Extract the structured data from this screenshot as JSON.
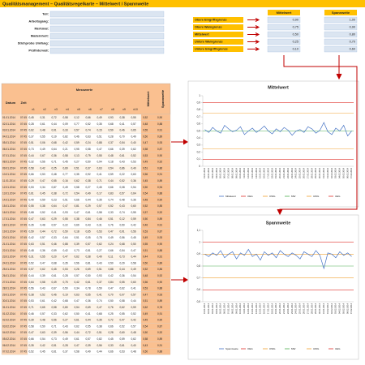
{
  "header": {
    "title": "Qualitätsmanagement – Qualitätsregelkarte – Mittelwert / Spannweite"
  },
  "info": {
    "labels": [
      "Teil:",
      "Arbeitsgang:",
      "Merkmal:",
      "Maßeinheit:",
      "Stichprobe Umfang:",
      "Prüfintervall:"
    ]
  },
  "limits": {
    "columns": [
      "Mittelwert",
      "Spannweite"
    ],
    "rows": [
      {
        "label": "Obere Eingriffsgrenze",
        "values": [
          "0,90",
          "1,00"
        ]
      },
      {
        "label": "Obere Warngrenze",
        "values": [
          "0,75",
          "0,90"
        ]
      },
      {
        "label": "Mittelwert",
        "values": [
          "0,50",
          "0,80"
        ]
      },
      {
        "label": "Untere Warngrenze",
        "values": [
          "0,25",
          "0,70"
        ]
      },
      {
        "label": "Untere Eingriffsgrenze",
        "values": [
          "0,10",
          "0,60"
        ]
      }
    ]
  },
  "table": {
    "headers": [
      "Datum",
      "Zeit",
      "Messwerte",
      "Mittelwert",
      "Spannweite"
    ],
    "subheaders": [
      "x1",
      "x2",
      "x3",
      "x4",
      "x5",
      "x6",
      "x7",
      "x8",
      "x9",
      "x10"
    ],
    "rows": [
      [
        "01.01.2014",
        "07:45",
        "0,45",
        "0,31",
        "0,72",
        "0,58",
        "0,12",
        "0,66",
        "0,49",
        "0,93",
        "0,38",
        "0,55",
        "0,52",
        "0,90"
      ],
      [
        "02.01.2014",
        "07:45",
        "0,28",
        "0,61",
        "0,44",
        "0,09",
        "0,77",
        "0,52",
        "0,35",
        "0,68",
        "0,41",
        "0,57",
        "0,48",
        "0,88"
      ],
      [
        "03.01.2014",
        "07:45",
        "0,62",
        "0,48",
        "0,91",
        "0,33",
        "0,57",
        "0,74",
        "0,15",
        "0,59",
        "0,46",
        "0,65",
        "0,55",
        "0,91"
      ],
      [
        "04.01.2014",
        "07:45",
        "0,37",
        "0,55",
        "0,19",
        "0,82",
        "0,46",
        "0,63",
        "0,51",
        "0,28",
        "0,70",
        "0,49",
        "0,50",
        "0,89"
      ],
      [
        "05.01.2014",
        "07:45",
        "0,51",
        "0,06",
        "0,68",
        "0,42",
        "0,59",
        "0,24",
        "0,88",
        "0,37",
        "0,54",
        "0,40",
        "0,47",
        "0,93"
      ],
      [
        "06.01.2014",
        "07:45",
        "0,73",
        "0,49",
        "0,64",
        "0,21",
        "0,95",
        "0,58",
        "0,47",
        "0,66",
        "0,39",
        "0,62",
        "0,58",
        "0,87"
      ],
      [
        "07.01.2014",
        "07:45",
        "0,44",
        "0,67",
        "0,36",
        "0,58",
        "0,13",
        "0,79",
        "0,55",
        "0,48",
        "0,61",
        "0,52",
        "0,53",
        "0,90"
      ],
      [
        "08.01.2014",
        "07:45",
        "0,32",
        "0,56",
        "0,71",
        "0,45",
        "0,27",
        "0,50",
        "0,94",
        "0,18",
        "0,43",
        "0,53",
        "0,49",
        "0,92"
      ],
      [
        "09.01.2014",
        "07:45",
        "0,58",
        "0,42",
        "0,25",
        "0,69",
        "0,51",
        "0,37",
        "0,63",
        "0,54",
        "0,86",
        "0,40",
        "0,51",
        "0,86"
      ],
      [
        "10.01.2014",
        "07:45",
        "0,66",
        "0,53",
        "0,48",
        "0,77",
        "0,35",
        "0,92",
        "0,41",
        "0,59",
        "0,22",
        "0,63",
        "0,56",
        "0,91"
      ],
      [
        "11.01.2014",
        "07:45",
        "0,29",
        "0,47",
        "0,55",
        "0,16",
        "0,62",
        "0,38",
        "0,71",
        "0,44",
        "0,52",
        "0,36",
        "0,45",
        "0,89"
      ],
      [
        "12.01.2014",
        "07:45",
        "0,53",
        "0,34",
        "0,87",
        "0,49",
        "0,58",
        "0,27",
        "0,45",
        "0,66",
        "0,08",
        "0,54",
        "0,50",
        "0,94"
      ],
      [
        "13.01.2014",
        "07:45",
        "0,61",
        "0,45",
        "0,38",
        "0,72",
        "0,54",
        "0,49",
        "0,17",
        "0,83",
        "0,57",
        "0,64",
        "0,54",
        "0,88"
      ],
      [
        "14.01.2014",
        "07:45",
        "0,40",
        "0,59",
        "0,23",
        "0,51",
        "0,66",
        "0,44",
        "0,35",
        "0,74",
        "0,48",
        "0,36",
        "0,48",
        "0,90"
      ],
      [
        "15.01.2014",
        "07:45",
        "0,55",
        "0,38",
        "0,64",
        "0,47",
        "0,81",
        "0,29",
        "0,57",
        "0,52",
        "0,43",
        "0,60",
        "0,52",
        "0,85"
      ],
      [
        "16.01.2014",
        "07:45",
        "0,68",
        "0,52",
        "0,41",
        "0,93",
        "0,47",
        "0,61",
        "0,58",
        "0,33",
        "0,74",
        "0,55",
        "0,57",
        "0,92"
      ],
      [
        "17.01.2014",
        "07:45",
        "0,47",
        "0,63",
        "0,29",
        "0,55",
        "0,38",
        "0,84",
        "0,46",
        "0,51",
        "0,12",
        "0,59",
        "0,50",
        "0,89"
      ],
      [
        "18.01.2014",
        "07:45",
        "0,35",
        "0,48",
        "0,57",
        "0,22",
        "0,69",
        "0,43",
        "0,31",
        "0,76",
        "0,50",
        "0,42",
        "0,46",
        "0,91"
      ],
      [
        "19.01.2014",
        "07:45",
        "0,59",
        "0,44",
        "0,72",
        "0,50",
        "0,18",
        "0,65",
        "0,53",
        "0,47",
        "0,91",
        "0,56",
        "0,53",
        "0,87"
      ],
      [
        "20.01.2014",
        "07:45",
        "0,42",
        "0,57",
        "0,33",
        "0,64",
        "0,51",
        "0,05",
        "0,78",
        "0,49",
        "0,56",
        "0,45",
        "0,49",
        "0,93"
      ],
      [
        "21.01.2014",
        "07:45",
        "0,63",
        "0,51",
        "0,46",
        "0,88",
        "0,39",
        "0,57",
        "0,62",
        "0,24",
        "0,68",
        "0,50",
        "0,55",
        "0,90"
      ],
      [
        "22.01.2014",
        "07:45",
        "0,48",
        "0,36",
        "0,59",
        "0,42",
        "0,73",
        "0,51",
        "0,27",
        "0,66",
        "0,54",
        "0,47",
        "0,51",
        "0,88"
      ],
      [
        "23.01.2014",
        "07:45",
        "0,31",
        "0,55",
        "0,20",
        "0,47",
        "0,62",
        "0,38",
        "0,49",
        "0,11",
        "0,73",
        "0,44",
        "0,44",
        "0,91"
      ],
      [
        "24.01.2014",
        "07:45",
        "0,52",
        "0,47",
        "0,68",
        "0,35",
        "0,56",
        "0,81",
        "0,43",
        "0,50",
        "0,29",
        "0,58",
        "0,50",
        "0,89"
      ],
      [
        "25.01.2014",
        "07:45",
        "0,57",
        "0,62",
        "0,45",
        "0,53",
        "0,26",
        "0,69",
        "0,51",
        "0,88",
        "0,44",
        "0,49",
        "0,52",
        "0,86"
      ],
      [
        "26.01.2014",
        "07:45",
        "0,44",
        "0,39",
        "0,61",
        "0,28",
        "0,57",
        "0,50",
        "0,93",
        "0,42",
        "0,36",
        "0,54",
        "0,48",
        "0,92"
      ],
      [
        "27.01.2014",
        "07:45",
        "0,64",
        "0,58",
        "0,49",
        "0,75",
        "0,42",
        "0,61",
        "0,37",
        "0,84",
        "0,55",
        "0,60",
        "0,56",
        "0,90"
      ],
      [
        "28.01.2014",
        "07:45",
        "0,56",
        "0,43",
        "0,67",
        "0,50",
        "0,34",
        "0,78",
        "0,59",
        "0,47",
        "0,62",
        "0,41",
        "0,53",
        "0,88"
      ],
      [
        "29.01.2014",
        "07:45",
        "0,38",
        "0,52",
        "0,46",
        "0,19",
        "0,63",
        "0,55",
        "0,41",
        "0,70",
        "0,07",
        "0,57",
        "0,47",
        "0,93"
      ],
      [
        "30.01.2014",
        "07:45",
        "0,53",
        "0,61",
        "0,42",
        "0,68",
        "0,47",
        "0,36",
        "0,74",
        "0,50",
        "0,58",
        "0,44",
        "0,51",
        "0,89"
      ],
      [
        "31.01.2014",
        "07:45",
        "0,71",
        "0,65",
        "0,58",
        "0,80",
        "0,54",
        "0,69",
        "0,47",
        "0,76",
        "0,62",
        "0,59",
        "0,62",
        "0,78"
      ],
      [
        "01.02.2014",
        "07:45",
        "0,46",
        "0,57",
        "0,33",
        "0,62",
        "0,50",
        "0,41",
        "0,68",
        "0,25",
        "0,55",
        "0,52",
        "0,49",
        "0,91"
      ],
      [
        "02.02.2014",
        "07:45",
        "0,39",
        "0,48",
        "0,56",
        "0,27",
        "0,61",
        "0,44",
        "0,35",
        "0,72",
        "0,47",
        "0,42",
        "0,45",
        "0,90"
      ],
      [
        "03.02.2014",
        "07:45",
        "0,58",
        "0,50",
        "0,71",
        "0,43",
        "0,62",
        "0,55",
        "0,38",
        "0,66",
        "0,52",
        "0,57",
        "0,54",
        "0,87"
      ],
      [
        "04.02.2014",
        "07:45",
        "0,47",
        "0,63",
        "0,39",
        "0,56",
        "0,44",
        "0,72",
        "0,51",
        "0,28",
        "0,60",
        "0,48",
        "0,50",
        "0,92"
      ],
      [
        "05.02.2014",
        "07:45",
        "0,66",
        "0,54",
        "0,73",
        "0,49",
        "0,61",
        "0,57",
        "0,82",
        "0,45",
        "0,59",
        "0,62",
        "0,58",
        "0,89"
      ],
      [
        "06.02.2014",
        "07:45",
        "0,35",
        "0,42",
        "0,51",
        "0,28",
        "0,47",
        "0,39",
        "0,56",
        "0,33",
        "0,61",
        "0,40",
        "0,43",
        "0,91"
      ],
      [
        "07.02.2014",
        "07:45",
        "0,52",
        "0,45",
        "0,61",
        "0,37",
        "0,58",
        "0,49",
        "0,44",
        "0,66",
        "0,53",
        "0,48",
        "0,50",
        "0,88"
      ]
    ]
  },
  "charts": [
    {
      "title": "Mittelwert",
      "series_name": "Mittelwert",
      "color": "#4472c4",
      "values": [
        0.52,
        0.48,
        0.55,
        0.5,
        0.47,
        0.58,
        0.53,
        0.49,
        0.51,
        0.56,
        0.45,
        0.5,
        0.54,
        0.48,
        0.52,
        0.57,
        0.5,
        0.46,
        0.53,
        0.49,
        0.55,
        0.51,
        0.44,
        0.5,
        0.52,
        0.48,
        0.56,
        0.53,
        0.47,
        0.51,
        0.62,
        0.49,
        0.45,
        0.54,
        0.5,
        0.58,
        0.43,
        0.5
      ],
      "ylim": [
        0,
        1
      ],
      "yticks": [
        {
          "value": 0,
          "label": "0"
        },
        {
          "value": 0.1,
          "label": "0,1"
        },
        {
          "value": 0.2,
          "label": "0,2"
        },
        {
          "value": 0.3,
          "label": "0,3"
        },
        {
          "value": 0.4,
          "label": "0,4"
        },
        {
          "value": 0.5,
          "label": "0,5"
        },
        {
          "value": 0.6,
          "label": "0,6"
        },
        {
          "value": 0.7,
          "label": "0,7"
        },
        {
          "value": 0.8,
          "label": "0,8"
        },
        {
          "value": 0.9,
          "label": "0,9"
        },
        {
          "value": 1,
          "label": "1"
        }
      ],
      "limits": [
        {
          "name": "OEG",
          "value": 0.9,
          "color": "#e0302a"
        },
        {
          "name": "OWG",
          "value": 0.75,
          "color": "#f0a030"
        },
        {
          "name": "MW",
          "value": 0.5,
          "color": "#4caf50"
        },
        {
          "name": "UWG",
          "value": 0.25,
          "color": "#f0a030"
        },
        {
          "name": "UEG",
          "value": 0.1,
          "color": "#e0302a"
        }
      ]
    },
    {
      "title": "Spannweite",
      "series_name": "Spannweite",
      "color": "#4472c4",
      "values": [
        0.9,
        0.88,
        0.91,
        0.89,
        0.93,
        0.87,
        0.9,
        0.92,
        0.86,
        0.91,
        0.89,
        0.94,
        0.88,
        0.9,
        0.85,
        0.92,
        0.89,
        0.91,
        0.87,
        0.93,
        0.9,
        0.88,
        0.91,
        0.89,
        0.86,
        0.92,
        0.9,
        0.88,
        0.93,
        0.89,
        0.78,
        0.91,
        0.9,
        0.87,
        0.92,
        0.89,
        0.91,
        0.88
      ],
      "ylim": [
        0.5,
        1.1
      ],
      "yticks": [
        {
          "value": 0.5,
          "label": "0,5"
        },
        {
          "value": 0.6,
          "label": "0,6"
        },
        {
          "value": 0.7,
          "label": "0,7"
        },
        {
          "value": 0.8,
          "label": "0,8"
        },
        {
          "value": 0.9,
          "label": "0,9"
        },
        {
          "value": 1,
          "label": "1"
        },
        {
          "value": 1.1,
          "label": "1,1"
        }
      ],
      "limits": [
        {
          "name": "OEG",
          "value": 1.0,
          "color": "#e0302a"
        },
        {
          "name": "OWG",
          "value": 0.9,
          "color": "#f0a030"
        },
        {
          "name": "MW",
          "value": 0.8,
          "color": "#4caf50"
        },
        {
          "name": "UWG",
          "value": 0.7,
          "color": "#f0a030"
        },
        {
          "name": "UEG",
          "value": 0.6,
          "color": "#e0302a"
        }
      ]
    }
  ]
}
